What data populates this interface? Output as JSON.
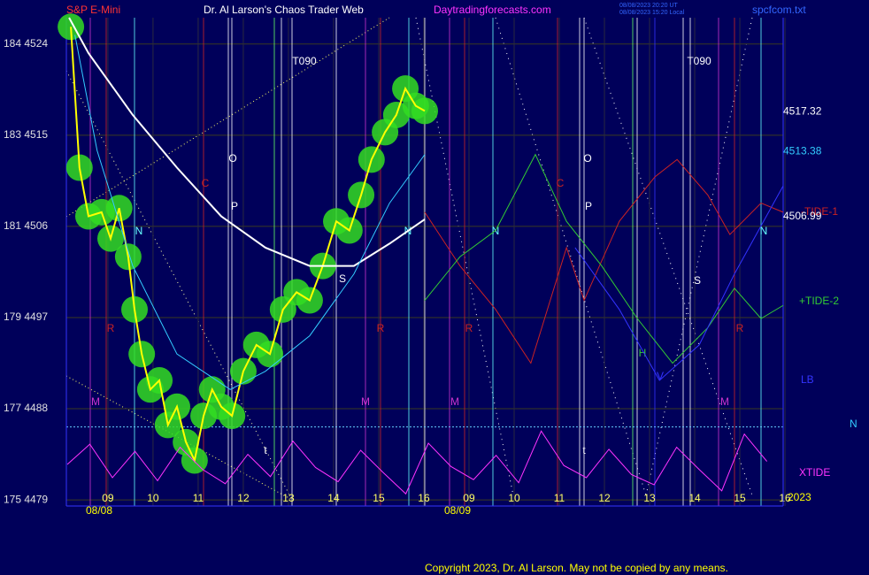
{
  "chart_data": {
    "type": "line",
    "instrument": "S&P E-Mini",
    "title": "Dr. Al Larson's Chaos Trader Web",
    "site": "Daytradingforecasts.com",
    "timestamps": [
      "08/08/2023 20:20 UT",
      "08/08/2023 15:20 Local"
    ],
    "file": "spcfcom.txt",
    "copyright": "Copyright 2023, Dr. Al Larson. May not be copied by any means.",
    "xlim": [
      0.08,
      15.96
    ],
    "xticks": [
      {
        "value": 1,
        "label": "09"
      },
      {
        "value": 2,
        "label": "10"
      },
      {
        "value": 3,
        "label": "11"
      },
      {
        "value": 4,
        "label": "12"
      },
      {
        "value": 5,
        "label": "13"
      },
      {
        "value": 6,
        "label": "14"
      },
      {
        "value": 7,
        "label": "15"
      },
      {
        "value": 8,
        "label": "16"
      },
      {
        "value": 9,
        "label": "09"
      },
      {
        "value": 10,
        "label": "10"
      },
      {
        "value": 11,
        "label": "11"
      },
      {
        "value": 12,
        "label": "12"
      },
      {
        "value": 13,
        "label": "13"
      },
      {
        "value": 14,
        "label": "14"
      },
      {
        "value": 15,
        "label": "15"
      },
      {
        "value": 16,
        "label": "16"
      }
    ],
    "date_labels": [
      "08/08",
      "08/09",
      "2023"
    ],
    "ylim": [
      4478.4,
      4526.6
    ],
    "yticks": [
      {
        "value": 4524,
        "label": "184 4524"
      },
      {
        "value": 4515,
        "label": "183 4515"
      },
      {
        "value": 4506,
        "label": "181 4506"
      },
      {
        "value": 4497,
        "label": "179 4497"
      },
      {
        "value": 4488,
        "label": "177 4488"
      },
      {
        "value": 4479,
        "label": "175 4479"
      }
    ],
    "grid": true,
    "reference_line": {
      "value": 4486.2,
      "color": "#66ccff"
    },
    "price_labels": [
      4517.32,
      4513.38,
      4506.99
    ],
    "right_marker": "N",
    "annotations": [
      "M",
      "R",
      "N",
      "C",
      "O",
      "P",
      "t",
      "T090",
      "S",
      "M",
      "R",
      "N",
      "M",
      "R",
      "N",
      "C",
      "O",
      "P",
      "t",
      "H",
      "V",
      "S",
      "T090",
      "M",
      "R",
      "N"
    ],
    "series": [
      {
        "color": "#ffff00",
        "highlight_color": "#33dd22",
        "x": [
          0.18,
          0.37,
          0.57,
          0.86,
          1.06,
          1.25,
          1.45,
          1.59,
          1.75,
          1.94,
          2.14,
          2.33,
          2.53,
          2.73,
          2.92,
          3.12,
          3.31,
          3.51,
          3.75,
          4,
          4.29,
          4.59,
          4.88,
          5.18,
          5.47,
          5.76,
          6.06,
          6.35,
          6.61,
          6.84,
          7.14,
          7.39,
          7.59,
          7.82,
          8.02
        ],
        "values": [
          4525.7,
          4511.8,
          4507,
          4507.4,
          4504.8,
          4507.8,
          4503,
          4497.8,
          4493.4,
          4489.9,
          4490.8,
          4486.4,
          4488.2,
          4484.7,
          4482.9,
          4487.3,
          4489.9,
          4488.2,
          4487.3,
          4491.7,
          4494.3,
          4493.4,
          4497.8,
          4499.5,
          4498.7,
          4502.1,
          4506.5,
          4505.6,
          4509.1,
          4512.6,
          4515.3,
          4517,
          4519.6,
          4517.9,
          4517.4
        ]
      },
      {
        "color": "#ffffff",
        "x": [
          0.14,
          0.57,
          1.55,
          2.53,
          3.51,
          4.49,
          5.47,
          6.45,
          7.24,
          8.02
        ],
        "values": [
          4526.6,
          4523.1,
          4517,
          4511.8,
          4507,
          4503.9,
          4502.1,
          4502.1,
          4504.3,
          4506.7
        ]
      },
      {
        "color": "#33ccff",
        "x": [
          0.27,
          0.76,
          1.55,
          2.53,
          3.71,
          4.49,
          5.47,
          6.45,
          7.24,
          8.02
        ],
        "values": [
          4524.9,
          4513.5,
          4502.1,
          4493.4,
          4489.9,
          4491.7,
          4495.2,
          4501.3,
          4508.3,
          4513.1
        ]
      },
      {
        "name": "-TIDE-1",
        "color": "#cc2222",
        "x": [
          8.02,
          8.8,
          9.59,
          10.37,
          11.16,
          11.55,
          12.33,
          13.12,
          13.61,
          14.29,
          14.78,
          15.47,
          15.96
        ],
        "values": [
          4507.4,
          4502.1,
          4497.8,
          4492.5,
          4503.9,
          4498.7,
          4506.5,
          4510.9,
          4512.6,
          4509.1,
          4505.2,
          4508.3,
          4507.4
        ]
      },
      {
        "name": "+TIDE-2",
        "color": "#33cc33",
        "x": [
          8.02,
          8.8,
          9.59,
          10.47,
          11.16,
          11.94,
          12.73,
          13.51,
          14.29,
          14.88,
          15.47,
          15.96
        ],
        "values": [
          4498.7,
          4503,
          4505.6,
          4513.1,
          4506.5,
          4502.1,
          4496.9,
          4492.5,
          4496,
          4499.9,
          4496.9,
          4498.2
        ]
      },
      {
        "name": "LB",
        "color": "#3333ff",
        "x": [
          11.35,
          12.33,
          13.22,
          14.1,
          14.88,
          15.96
        ],
        "values": [
          4503.9,
          4497.8,
          4490.8,
          4494.3,
          4501.3,
          4510
        ]
      },
      {
        "name": "XTIDE",
        "color": "#ff33ff",
        "x": [
          0.1,
          0.6,
          1.1,
          1.6,
          2.1,
          2.6,
          3.1,
          3.6,
          4.1,
          4.6,
          5.1,
          5.6,
          6.1,
          6.6,
          7.1,
          7.6,
          8.1,
          8.6,
          9.1,
          9.6,
          10.1,
          10.6,
          11.1,
          11.6,
          12.1,
          12.6,
          13.1,
          13.6,
          14.1,
          14.6,
          15.1,
          15.6
        ],
        "values": [
          4482.5,
          4484.5,
          4481.2,
          4483.8,
          4480.9,
          4484.2,
          4482,
          4480.6,
          4483.5,
          4481.3,
          4484.8,
          4482.2,
          4480.8,
          4483.9,
          4481.7,
          4479.6,
          4484.6,
          4482.3,
          4481,
          4483.4,
          4480.7,
          4485.8,
          4482.4,
          4481.2,
          4484,
          4481.5,
          4480.5,
          4484.2,
          4482,
          4479.9,
          4485.5,
          4482.8
        ]
      }
    ]
  }
}
